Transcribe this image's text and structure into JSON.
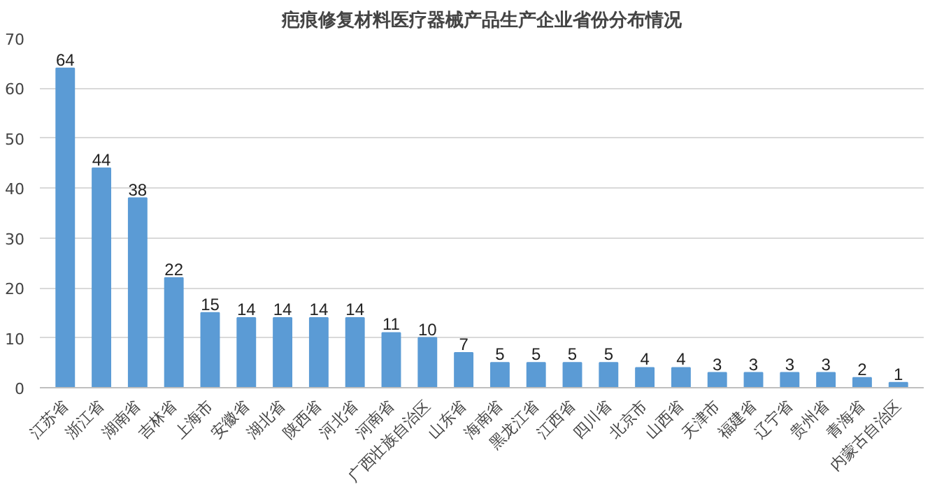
{
  "chart_data": {
    "type": "bar",
    "title": "疤痕修复材料医疗器械产品生产企业省份分布情况",
    "categories": [
      "江苏省",
      "浙江省",
      "湖南省",
      "吉林省",
      "上海市",
      "安徽省",
      "湖北省",
      "陕西省",
      "河北省",
      "河南省",
      "广西壮族自治区",
      "山东省",
      "海南省",
      "黑龙江省",
      "江西省",
      "四川省",
      "北京市",
      "山西省",
      "天津市",
      "福建省",
      "辽宁省",
      "贵州省",
      "青海省",
      "内蒙古自治区"
    ],
    "values": [
      64,
      44,
      38,
      22,
      15,
      14,
      14,
      14,
      14,
      11,
      10,
      7,
      5,
      5,
      5,
      5,
      4,
      4,
      3,
      3,
      3,
      3,
      2,
      1
    ],
    "color": "#5b9bd5",
    "ylim": [
      0,
      70
    ],
    "yticks": [
      0,
      10,
      20,
      30,
      40,
      50,
      60,
      70
    ],
    "grid": "y",
    "data_labels": true
  }
}
